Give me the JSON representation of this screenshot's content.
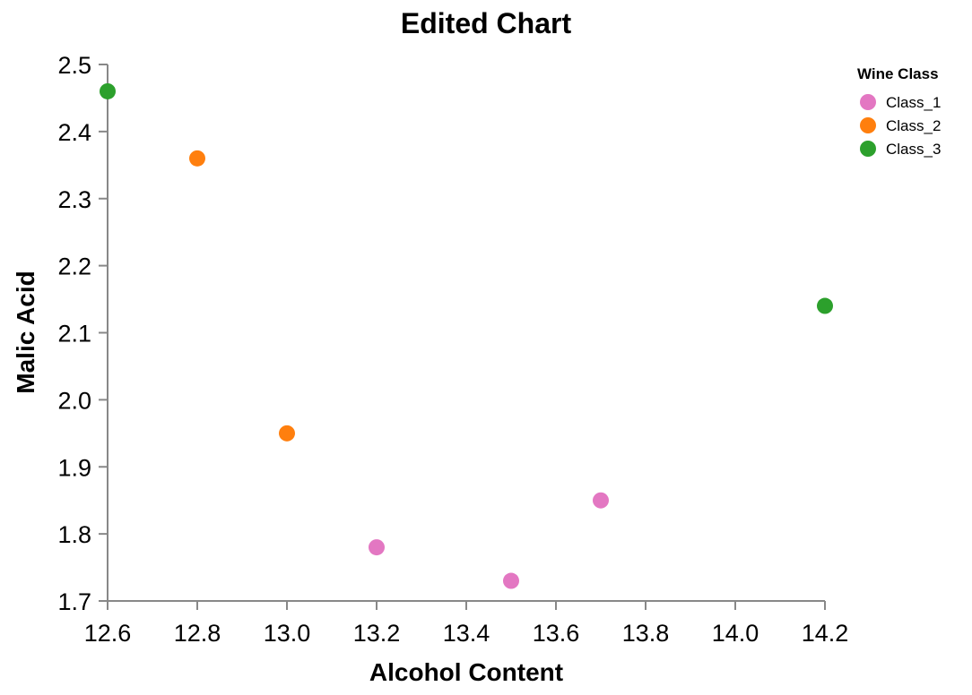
{
  "chart_data": {
    "type": "scatter",
    "title": "Edited Chart",
    "xlabel": "Alcohol Content",
    "ylabel": "Malic Acid",
    "xlim": [
      12.6,
      14.2
    ],
    "ylim": [
      1.7,
      2.5
    ],
    "x_ticks": [
      "12.6",
      "12.8",
      "13.0",
      "13.2",
      "13.4",
      "13.6",
      "13.8",
      "14.0",
      "14.2"
    ],
    "y_ticks": [
      "1.7",
      "1.8",
      "1.9",
      "2.0",
      "2.1",
      "2.2",
      "2.3",
      "2.4",
      "2.5"
    ],
    "grid": false,
    "legend": {
      "title": "Wine Class",
      "placement": "top-right"
    },
    "series": [
      {
        "name": "Class_1",
        "color": "#e377c2",
        "points": [
          {
            "x": 13.2,
            "y": 1.78
          },
          {
            "x": 13.5,
            "y": 1.73
          },
          {
            "x": 13.7,
            "y": 1.85
          }
        ]
      },
      {
        "name": "Class_2",
        "color": "#ff7f0e",
        "points": [
          {
            "x": 12.8,
            "y": 2.36
          },
          {
            "x": 13.0,
            "y": 1.95
          }
        ]
      },
      {
        "name": "Class_3",
        "color": "#2ca02c",
        "points": [
          {
            "x": 12.6,
            "y": 2.46
          },
          {
            "x": 14.2,
            "y": 2.14
          }
        ]
      }
    ]
  }
}
